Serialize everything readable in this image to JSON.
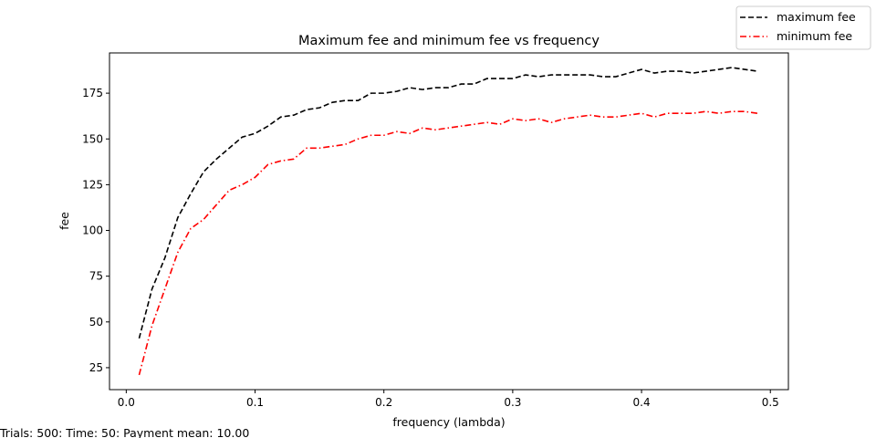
{
  "chart_data": {
    "type": "line",
    "title": "Maximum fee and minimum fee vs frequency",
    "xlabel": "frequency (lambda)",
    "ylabel": "fee",
    "xlim": [
      -0.013,
      0.514
    ],
    "ylim": [
      13,
      197
    ],
    "x_ticks": [
      0.0,
      0.1,
      0.2,
      0.3,
      0.4,
      0.5
    ],
    "x_tick_labels": [
      "0.0",
      "0.1",
      "0.2",
      "0.3",
      "0.4",
      "0.5"
    ],
    "y_ticks": [
      25,
      50,
      75,
      100,
      125,
      150,
      175
    ],
    "y_tick_labels": [
      "25",
      "50",
      "75",
      "100",
      "125",
      "150",
      "175"
    ],
    "grid": false,
    "legend_position": "top-right",
    "x": [
      0.01,
      0.02,
      0.03,
      0.04,
      0.05,
      0.06,
      0.07,
      0.08,
      0.09,
      0.1,
      0.11,
      0.12,
      0.13,
      0.14,
      0.15,
      0.16,
      0.17,
      0.18,
      0.19,
      0.2,
      0.21,
      0.22,
      0.23,
      0.24,
      0.25,
      0.26,
      0.27,
      0.28,
      0.29,
      0.3,
      0.31,
      0.32,
      0.33,
      0.34,
      0.35,
      0.36,
      0.37,
      0.38,
      0.39,
      0.4,
      0.41,
      0.42,
      0.43,
      0.44,
      0.45,
      0.46,
      0.47,
      0.48,
      0.49
    ],
    "series": [
      {
        "name": "maximum fee",
        "color": "#000000",
        "dash": "dashed",
        "values": [
          41,
          68,
          85,
          107,
          120,
          132,
          139,
          145,
          151,
          153,
          157,
          162,
          163,
          166,
          167,
          170,
          171,
          171,
          175,
          175,
          176,
          178,
          177,
          178,
          178,
          180,
          180,
          183,
          183,
          183,
          185,
          184,
          185,
          185,
          185,
          185,
          184,
          184,
          186,
          188,
          186,
          187,
          187,
          186,
          187,
          188,
          189,
          188,
          187
        ]
      },
      {
        "name": "minimum fee",
        "color": "#ff0000",
        "dash": "dashdot",
        "values": [
          21,
          48,
          68,
          88,
          101,
          106,
          114,
          122,
          125,
          129,
          136,
          138,
          139,
          145,
          145,
          146,
          147,
          150,
          152,
          152,
          154,
          153,
          156,
          155,
          156,
          157,
          158,
          159,
          158,
          161,
          160,
          161,
          159,
          161,
          162,
          163,
          162,
          162,
          163,
          164,
          162,
          164,
          164,
          164,
          165,
          164,
          165,
          165,
          164
        ]
      }
    ]
  },
  "footer": {
    "text": "Trials: 500: Time: 50: Payment mean: 10.00"
  }
}
